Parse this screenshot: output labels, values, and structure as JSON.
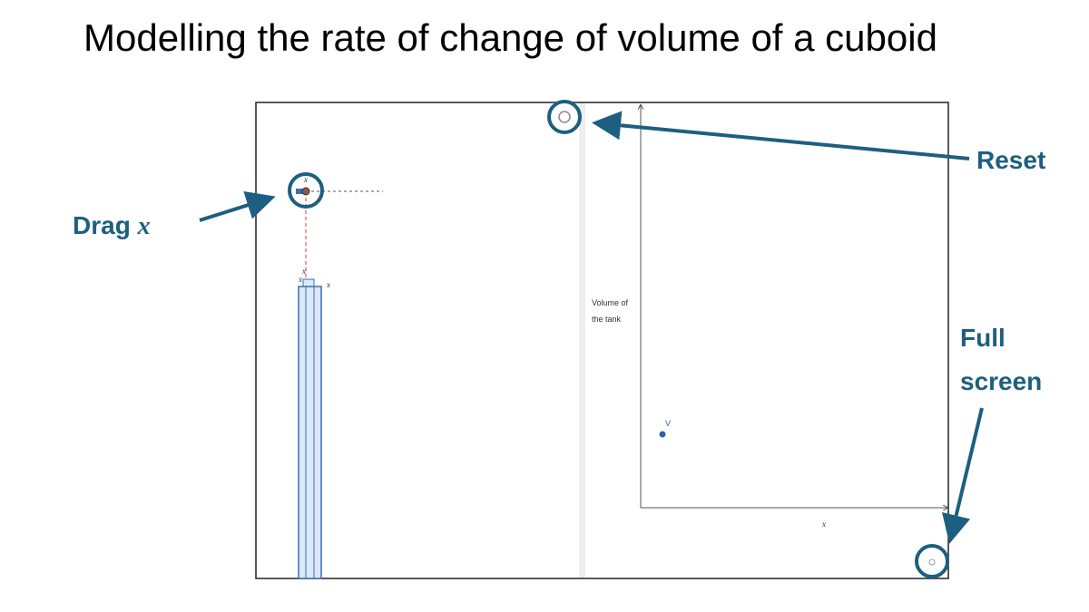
{
  "title": "Modelling the rate of change of volume of a cuboid",
  "annotations": {
    "reset": "Reset",
    "drag": {
      "text": "Drag",
      "variable": "x"
    },
    "full_screen": [
      "Full",
      "screen"
    ]
  },
  "applet": {
    "slider_label": "x",
    "cuboid_labels": [
      "x",
      "x",
      "x"
    ],
    "y_axis_label": [
      "Volume of",
      "the tank"
    ],
    "point_label": "V",
    "x_axis_label": "x"
  }
}
